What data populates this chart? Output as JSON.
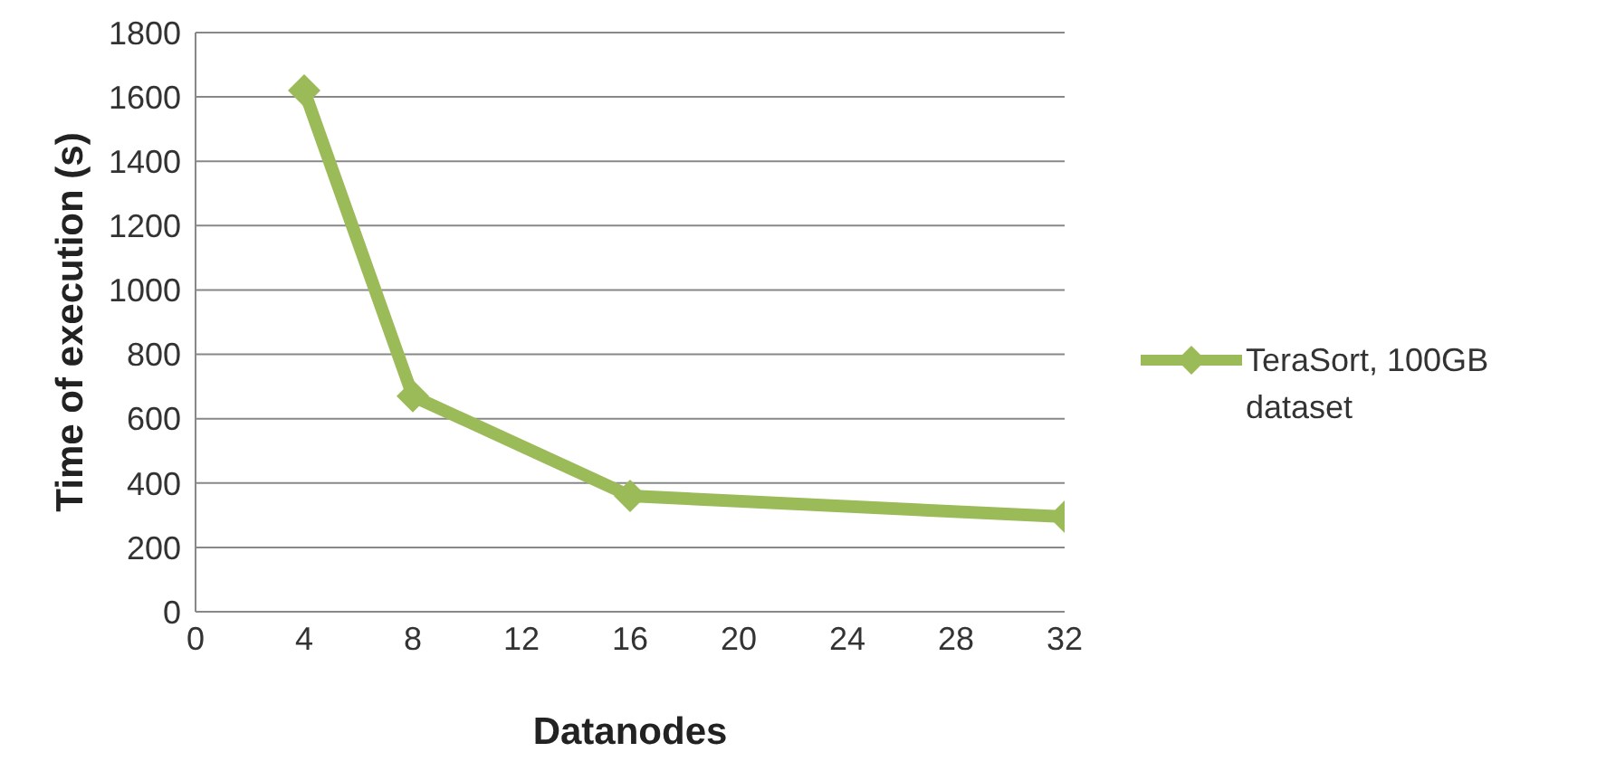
{
  "chart_data": {
    "type": "line",
    "xlabel": "Datanodes",
    "ylabel": "Time  of execution (s)",
    "x": [
      4,
      8,
      16,
      32
    ],
    "series": [
      {
        "name": "TeraSort, 100GB dataset",
        "color": "#9bbb59",
        "values": [
          1620,
          670,
          360,
          295
        ]
      }
    ],
    "xlim": [
      0,
      32
    ],
    "xticks": [
      0,
      4,
      8,
      12,
      16,
      20,
      24,
      28,
      32
    ],
    "ylim": [
      0,
      1800
    ],
    "yticks": [
      0,
      200,
      400,
      600,
      800,
      1000,
      1200,
      1400,
      1600,
      1800
    ],
    "grid": "y",
    "legend": "right",
    "marker": "diamond",
    "line_style": "solid"
  }
}
